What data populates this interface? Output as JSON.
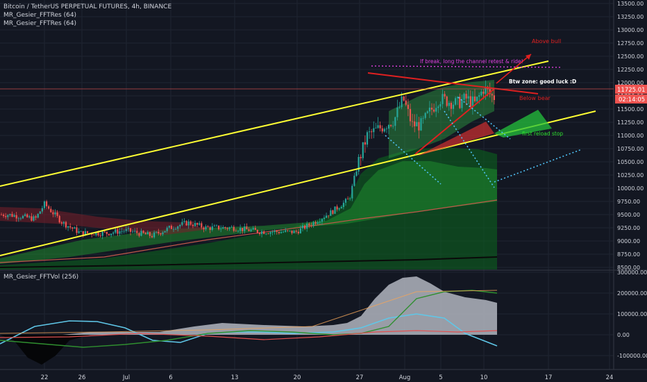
{
  "header": {
    "symbol_line": "Bitcoin / TetherUS PERPETUAL FUTURES, 4h, BINANCE",
    "indicators": [
      "MR_Gesier_FFTRes (64)",
      "MR_Gesier_FFTRes (64)"
    ],
    "volume_indicator": "MR_Gesier_FFTVol (256)"
  },
  "colors": {
    "background": "#131722",
    "grid": "#1f2431",
    "up_candle": "#26a69a",
    "down_candle": "#ef5350",
    "channel": "#ffff33",
    "annotation_red": "#e02020",
    "annotation_green": "#2ee02e",
    "annotation_magenta": "#e040e0",
    "dotted_cyan": "#4fc3f7",
    "price_tag": "#ef5350"
  },
  "price_axis": {
    "ticks": [
      "13500.00",
      "13250.00",
      "13000.00",
      "12750.00",
      "12500.00",
      "12250.00",
      "12000.00",
      "11750.00",
      "11500.00",
      "11250.00",
      "11000.00",
      "10750.00",
      "10500.00",
      "10250.00",
      "10000.00",
      "9750.00",
      "9500.00",
      "9250.00",
      "9000.00",
      "8750.00",
      "8500.00"
    ],
    "current_price": "11725.01",
    "countdown": "02:14:05"
  },
  "volume_axis": {
    "ticks": [
      "300000.00",
      "200000.00",
      "100000.00",
      "0.00",
      "-100000.00"
    ]
  },
  "time_axis": {
    "labels": [
      "22",
      "26",
      "Jul",
      "6",
      "13",
      "20",
      "27",
      "Aug",
      "5",
      "10",
      "17",
      "24"
    ]
  },
  "annotations": {
    "above_bull": "Above bull",
    "below_bear": "Below bear",
    "breakout_note": "If break, long the channel retest & ride!",
    "btw_zone": "Btw zone: good luck :D",
    "first_reload": "first reload stop"
  },
  "chart_data": {
    "type": "candlestick",
    "symbol": "Bitcoin / TetherUS PERPETUAL FUTURES",
    "interval": "4h",
    "exchange": "BINANCE",
    "ylim": [
      8500,
      13600
    ],
    "last_price": 11725.01,
    "x_tick_labels": [
      "22",
      "26",
      "Jul",
      "6",
      "13",
      "20",
      "27",
      "Aug",
      "5",
      "10",
      "17",
      "24"
    ],
    "close_path": [
      {
        "x": "Jun 18",
        "close": 9500
      },
      {
        "x": "Jun 21",
        "close": 9420
      },
      {
        "x": "Jun 22",
        "close": 9700
      },
      {
        "x": "Jun 24",
        "close": 9350
      },
      {
        "x": "Jun 26",
        "close": 9150
      },
      {
        "x": "Jun 29",
        "close": 9150
      },
      {
        "x": "Jul 1",
        "close": 9200
      },
      {
        "x": "Jul 4",
        "close": 9100
      },
      {
        "x": "Jul 6",
        "close": 9250
      },
      {
        "x": "Jul 8",
        "close": 9350
      },
      {
        "x": "Jul 10",
        "close": 9250
      },
      {
        "x": "Jul 13",
        "close": 9250
      },
      {
        "x": "Jul 16",
        "close": 9180
      },
      {
        "x": "Jul 20",
        "close": 9170
      },
      {
        "x": "Jul 22",
        "close": 9350
      },
      {
        "x": "Jul 24",
        "close": 9550
      },
      {
        "x": "Jul 26",
        "close": 9800
      },
      {
        "x": "Jul 27",
        "close": 10500
      },
      {
        "x": "Jul 28",
        "close": 11000
      },
      {
        "x": "Jul 29",
        "close": 11100
      },
      {
        "x": "Jul 31",
        "close": 11300
      },
      {
        "x": "Aug 1",
        "close": 11700
      },
      {
        "x": "Aug 2",
        "close": 11200
      },
      {
        "x": "Aug 3",
        "close": 11200
      },
      {
        "x": "Aug 5",
        "close": 11700
      },
      {
        "x": "Aug 7",
        "close": 11600
      },
      {
        "x": "Aug 8",
        "close": 11700
      },
      {
        "x": "Aug 9",
        "close": 11600
      },
      {
        "x": "Aug 10",
        "close": 11900
      },
      {
        "x": "Aug 11",
        "close": 11725
      }
    ],
    "volume_panel": {
      "name": "MR_Gesier_FFTVol (256)",
      "ylim": [
        -130000,
        310000
      ]
    }
  }
}
